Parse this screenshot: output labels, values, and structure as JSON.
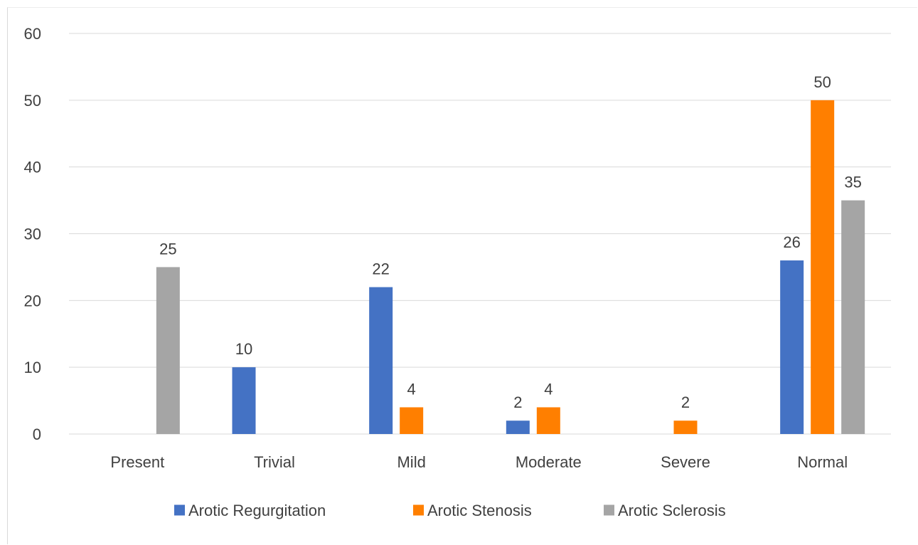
{
  "chart_data": {
    "type": "bar",
    "categories": [
      "Present",
      "Trivial",
      "Mild",
      "Moderate",
      "Severe",
      "Normal"
    ],
    "series": [
      {
        "name": "Arotic Regurgitation",
        "color": "#4472c4",
        "values": [
          null,
          10,
          22,
          2,
          null,
          26
        ]
      },
      {
        "name": "Arotic Stenosis",
        "color": "#ff7f00",
        "values": [
          null,
          null,
          4,
          4,
          2,
          50
        ]
      },
      {
        "name": "Arotic Sclerosis",
        "color": "#a5a5a5",
        "values": [
          25,
          null,
          null,
          null,
          null,
          35
        ]
      }
    ],
    "ylim": [
      0,
      60
    ],
    "yticks": [
      0,
      10,
      20,
      30,
      40,
      50,
      60
    ],
    "grid": true,
    "legend_position": "bottom",
    "data_labels": true
  }
}
